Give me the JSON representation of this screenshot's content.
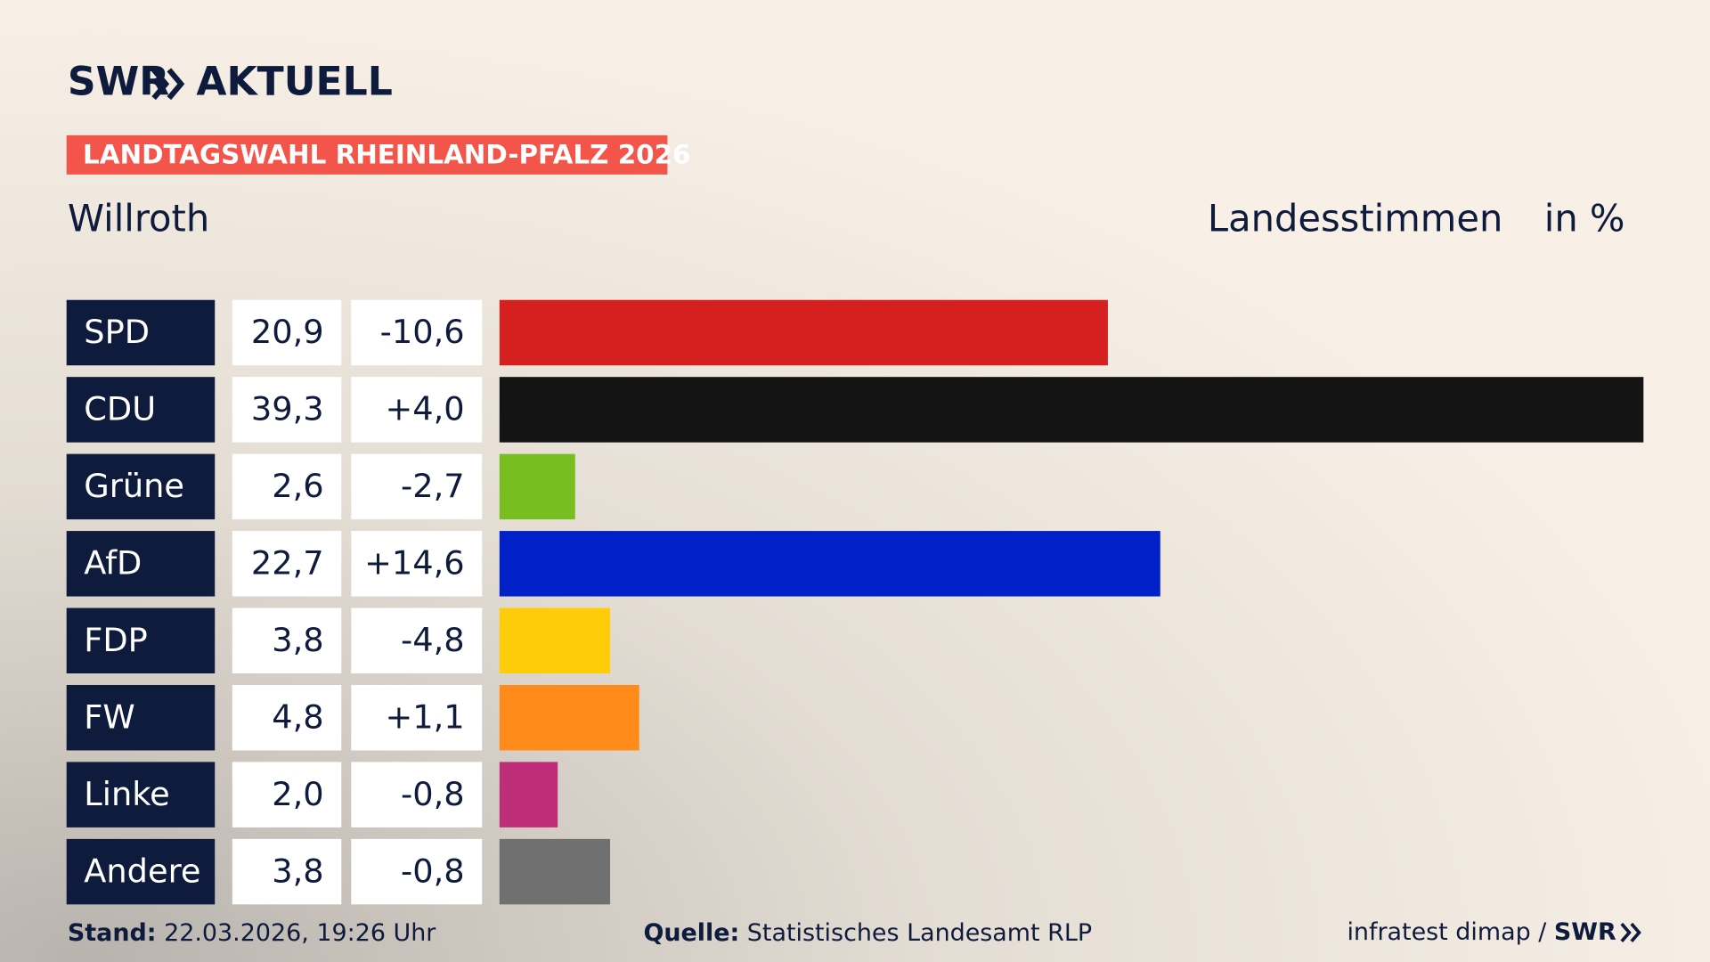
{
  "header": {
    "brand": "SWR",
    "brand_suffix": "AKTUELL",
    "banner": "LANDTAGSWAHL RHEINLAND-PFALZ 2026"
  },
  "chart_data": {
    "type": "bar",
    "title": "Willroth",
    "subtitle": "Landesstimmen",
    "unit": "in %",
    "categories": [
      "SPD",
      "CDU",
      "Grüne",
      "AfD",
      "FDP",
      "FW",
      "Linke",
      "Andere"
    ],
    "values": [
      20.9,
      39.3,
      2.6,
      22.7,
      3.8,
      4.8,
      2.0,
      3.8
    ],
    "value_labels": [
      "20,9",
      "39,3",
      "2,6",
      "22,7",
      "3,8",
      "4,8",
      "2,0",
      "3,8"
    ],
    "changes": [
      "-10,6",
      "+4,0",
      "-2,7",
      "+14,6",
      "-4,8",
      "+1,1",
      "-0,8",
      "-0,8"
    ],
    "colors": [
      "#d62020",
      "#141414",
      "#78be20",
      "#0020c8",
      "#ffcc0a",
      "#ff8c1a",
      "#be2d78",
      "#707070"
    ]
  },
  "footer": {
    "stand_label": "Stand:",
    "stand": "22.03.2026, 19:26 Uhr",
    "source_label": "Quelle:",
    "source": "Statistisches Landesamt RLP",
    "credit": "infratest dimap /",
    "credit_brand": "SWR"
  }
}
